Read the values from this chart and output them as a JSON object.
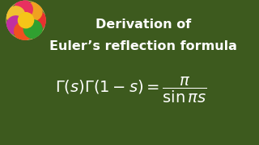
{
  "background_color": "#3d5a1e",
  "title_line1": "Derivation of",
  "title_line2": "Euler’s reflection formula",
  "formula": "\\Gamma(s)\\Gamma(1-s) = \\dfrac{\\pi}{\\sin \\pi s}",
  "title_color": "white",
  "formula_color": "white",
  "title_fontsize": 11.5,
  "formula_fontsize": 14,
  "flower_circle_color": "#c8a060",
  "fig_width": 3.2,
  "fig_height": 1.8,
  "dpi": 100
}
